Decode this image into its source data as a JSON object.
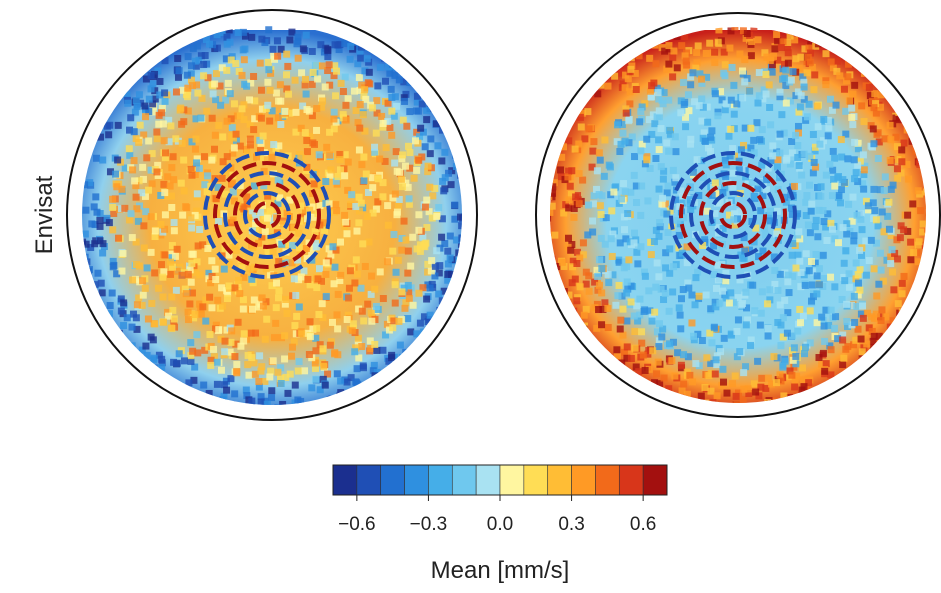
{
  "chart_data": {
    "type": "colorbar",
    "ylabel": "Envisat",
    "xlabel": "Mean [mm/s]",
    "xlim": [
      -0.7,
      0.7
    ],
    "bins": [
      -0.7,
      -0.6,
      -0.5,
      -0.4,
      -0.3,
      -0.2,
      -0.1,
      0,
      0.1,
      0.2,
      0.3,
      0.4,
      0.5,
      0.6,
      0.7
    ],
    "colors": [
      "#1b2f8f",
      "#1f4fb5",
      "#2270d0",
      "#2f90e0",
      "#45aee8",
      "#6fc8ee",
      "#a9e2f2",
      "#fff6a0",
      "#ffdd55",
      "#ffbd35",
      "#ff9a25",
      "#f26a1a",
      "#d8361a",
      "#a3100f"
    ],
    "xticks": [
      {
        "value": -0.6,
        "label": "−0.6"
      },
      {
        "value": -0.3,
        "label": "−0.3"
      },
      {
        "value": 0,
        "label": "0.0"
      },
      0.3,
      0.6
    ]
  }
}
